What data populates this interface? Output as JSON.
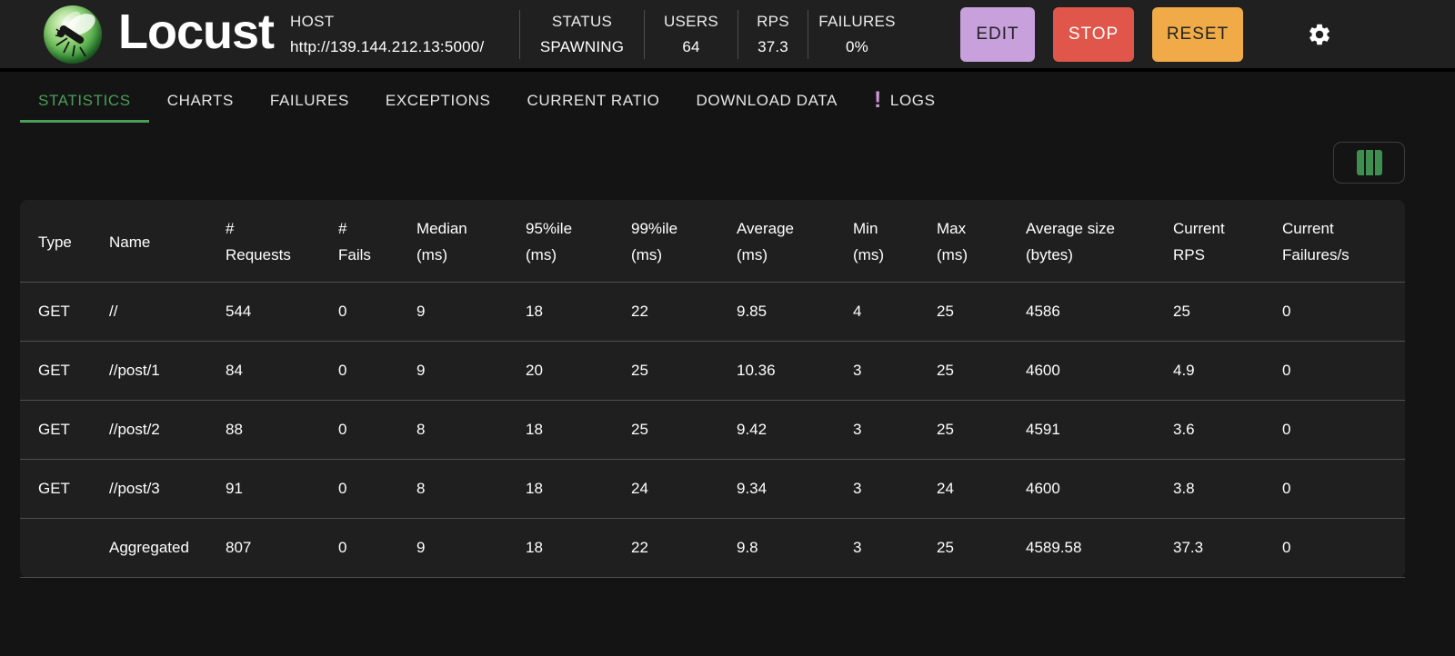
{
  "header": {
    "app_title": "Locust",
    "host_label": "HOST",
    "host_value": "http://139.144.212.13:5000/",
    "stats": [
      {
        "label": "STATUS",
        "value": "SPAWNING"
      },
      {
        "label": "USERS",
        "value": "64"
      },
      {
        "label": "RPS",
        "value": "37.3"
      },
      {
        "label": "FAILURES",
        "value": "0%"
      }
    ],
    "buttons": {
      "edit": "EDIT",
      "stop": "STOP",
      "reset": "RESET"
    },
    "icons": {
      "logo": "locust-logo",
      "settings": "gear-icon"
    }
  },
  "tabs": [
    {
      "label": "STATISTICS",
      "active": true
    },
    {
      "label": "CHARTS"
    },
    {
      "label": "FAILURES"
    },
    {
      "label": "EXCEPTIONS"
    },
    {
      "label": "CURRENT RATIO"
    },
    {
      "label": "DOWNLOAD DATA"
    },
    {
      "label": "LOGS",
      "badge": "!"
    }
  ],
  "toolbar": {
    "column_selector_icon": "view-columns-icon"
  },
  "table": {
    "columns": [
      [
        "Type"
      ],
      [
        "Name"
      ],
      [
        "#",
        "Requests"
      ],
      [
        "#",
        "Fails"
      ],
      [
        "Median",
        "(ms)"
      ],
      [
        "95%ile",
        "(ms)"
      ],
      [
        "99%ile",
        "(ms)"
      ],
      [
        "Average",
        "(ms)"
      ],
      [
        "Min",
        "(ms)"
      ],
      [
        "Max",
        "(ms)"
      ],
      [
        "Average size",
        "(bytes)"
      ],
      [
        "Current",
        "RPS"
      ],
      [
        "Current",
        "Failures/s"
      ]
    ],
    "rows": [
      [
        "GET",
        "//",
        "544",
        "0",
        "9",
        "18",
        "22",
        "9.85",
        "4",
        "25",
        "4586",
        "25",
        "0"
      ],
      [
        "GET",
        "//post/1",
        "84",
        "0",
        "9",
        "20",
        "25",
        "10.36",
        "3",
        "25",
        "4600",
        "4.9",
        "0"
      ],
      [
        "GET",
        "//post/2",
        "88",
        "0",
        "8",
        "18",
        "25",
        "9.42",
        "3",
        "25",
        "4591",
        "3.6",
        "0"
      ],
      [
        "GET",
        "//post/3",
        "91",
        "0",
        "8",
        "18",
        "24",
        "9.34",
        "3",
        "24",
        "4600",
        "3.8",
        "0"
      ],
      [
        "",
        "Aggregated",
        "807",
        "0",
        "9",
        "18",
        "22",
        "9.8",
        "3",
        "25",
        "4589.58",
        "37.3",
        "0"
      ]
    ]
  },
  "colors": {
    "accent_green": "#4a9e58",
    "edit_button": "#c7a0dc",
    "stop_button": "#e0564a",
    "reset_button": "#f0ab48",
    "logs_badge": "#ce93d8",
    "panel_bg": "#1f1f1f",
    "header_bg": "#202020"
  }
}
